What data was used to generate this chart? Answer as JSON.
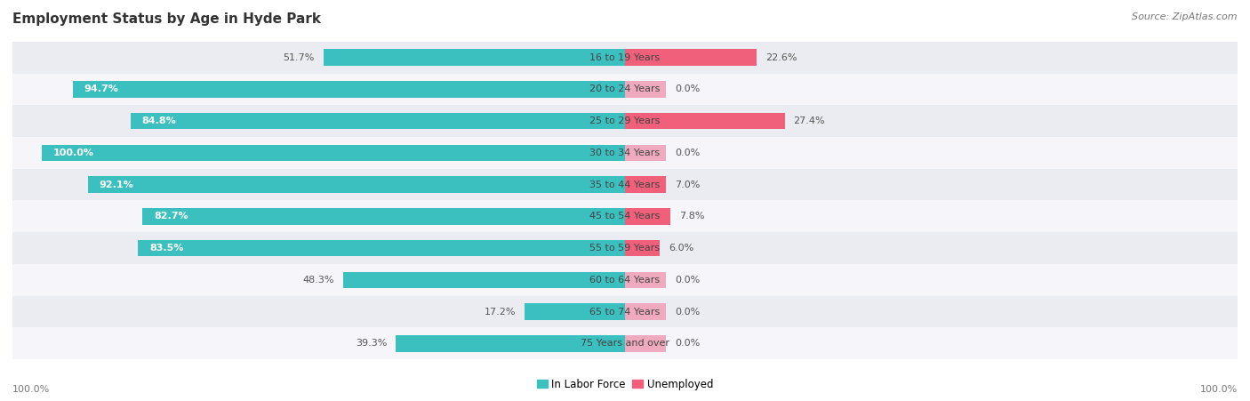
{
  "title": "Employment Status by Age in Hyde Park",
  "source": "Source: ZipAtlas.com",
  "categories": [
    "16 to 19 Years",
    "20 to 24 Years",
    "25 to 29 Years",
    "30 to 34 Years",
    "35 to 44 Years",
    "45 to 54 Years",
    "55 to 59 Years",
    "60 to 64 Years",
    "65 to 74 Years",
    "75 Years and over"
  ],
  "labor_force": [
    51.7,
    94.7,
    84.8,
    100.0,
    92.1,
    82.7,
    83.5,
    48.3,
    17.2,
    39.3
  ],
  "unemployed": [
    22.6,
    0.0,
    27.4,
    0.0,
    7.0,
    7.8,
    6.0,
    0.0,
    0.0,
    0.0
  ],
  "labor_force_color": "#3bbfbf",
  "unemployed_color_strong": "#f0607a",
  "unemployed_color_light": "#f0aabf",
  "bar_height": 0.52,
  "row_color_light": "#ebebf2",
  "row_color_dark": "#f5f5fa",
  "legend_label_lf": "In Labor Force",
  "legend_label_un": "Unemployed",
  "label_fontsize": 8.0,
  "category_fontsize": 8.0,
  "title_fontsize": 11,
  "source_fontsize": 8
}
